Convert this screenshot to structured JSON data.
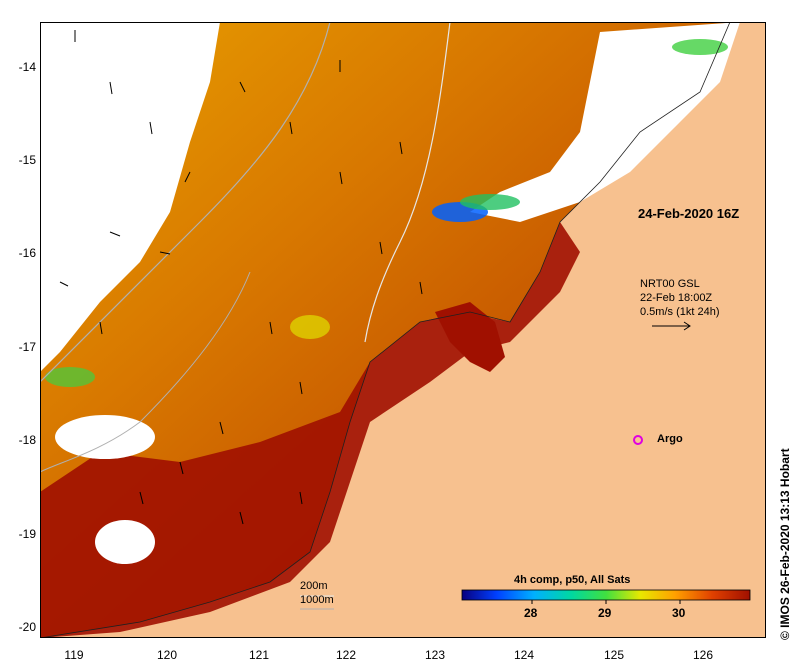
{
  "colors": {
    "land": "#f7c18f",
    "cloud": "#ffffff",
    "sst_warm": "#a01000",
    "sst_mid": "#d86a00",
    "sst_cool": "#e8a000",
    "contour": "#b0b0b0",
    "argo_marker": "#e000e0"
  },
  "axes": {
    "y_ticks": [
      "-14",
      "-15",
      "-16",
      "-17",
      "-18",
      "-19",
      "-20"
    ],
    "x_ticks": [
      "119",
      "120",
      "121",
      "122",
      "123",
      "124",
      "125",
      "126"
    ]
  },
  "annotations": {
    "date_label": "24-Feb-2020 16Z",
    "current_source": "NRT00 GSL",
    "current_time": "22-Feb 18:00Z",
    "current_scale": "0.5m/s (1kt 24h)",
    "argo_label": "Argo",
    "depth_200": "200m",
    "depth_1000": "1000m"
  },
  "colorbar": {
    "title": "4h comp, p50, All Sats",
    "ticks": [
      "28",
      "29",
      "30"
    ],
    "stops": [
      "#08007f",
      "#0040ff",
      "#00b0ff",
      "#00d8a0",
      "#40e040",
      "#e8e800",
      "#ffa000",
      "#e04000",
      "#a01000"
    ]
  },
  "credit": "© IMOS 26-Feb-2020 13:13 Hobart"
}
